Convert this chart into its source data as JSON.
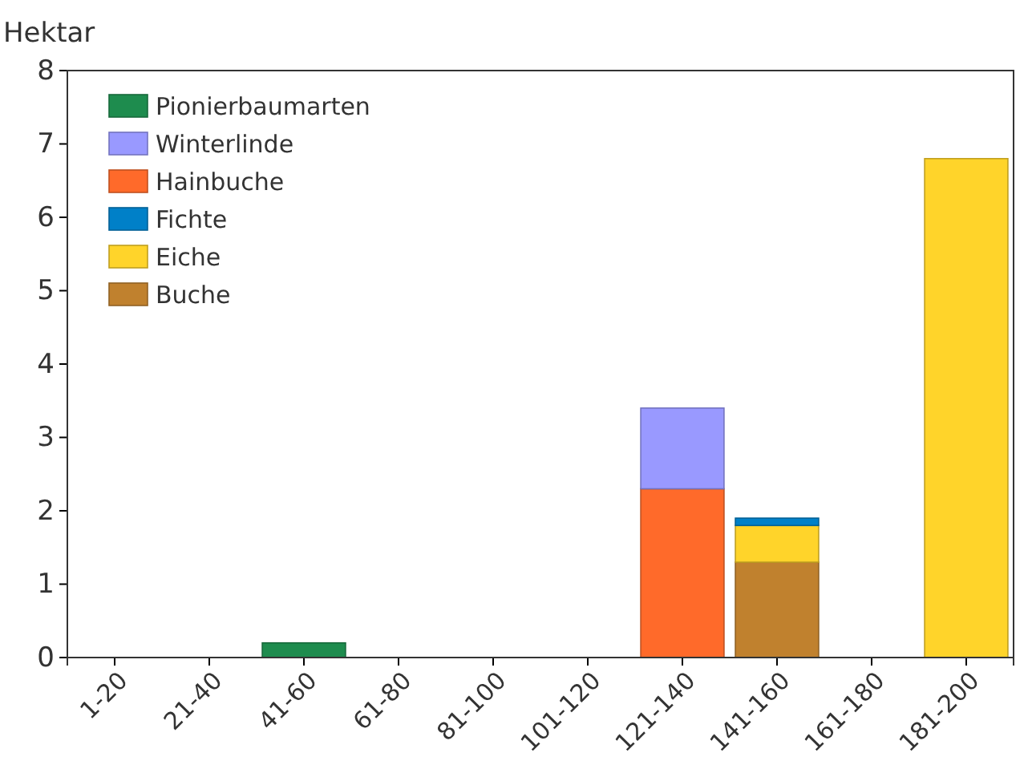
{
  "chart_data": {
    "type": "bar",
    "stacked": true,
    "ylabel": "Hektar",
    "categories": [
      "1-20",
      "21-40",
      "41-60",
      "61-80",
      "81-100",
      "101-120",
      "121-140",
      "141-160",
      "161-180",
      "181-200"
    ],
    "series": [
      {
        "name": "Buche",
        "color": "#c0812e",
        "values": [
          0,
          0,
          0,
          0,
          0,
          0,
          0,
          1.3,
          0,
          0
        ]
      },
      {
        "name": "Eiche",
        "color": "#ffd42a",
        "values": [
          0,
          0,
          0,
          0,
          0,
          0,
          0,
          0.5,
          0,
          6.8
        ]
      },
      {
        "name": "Fichte",
        "color": "#0080c8",
        "values": [
          0,
          0,
          0,
          0,
          0,
          0,
          0,
          0.1,
          0,
          0
        ]
      },
      {
        "name": "Hainbuche",
        "color": "#ff6a2a",
        "values": [
          0,
          0,
          0,
          0,
          0,
          0,
          2.3,
          0,
          0,
          0
        ]
      },
      {
        "name": "Winterlinde",
        "color": "#9999ff",
        "values": [
          0,
          0,
          0,
          0,
          0,
          0,
          1.1,
          0,
          0,
          0
        ]
      },
      {
        "name": "Pionierbaumarten",
        "color": "#1e8c4e",
        "values": [
          0,
          0,
          0.2,
          0,
          0,
          0,
          0,
          0,
          0,
          0
        ]
      }
    ],
    "ylim": [
      0,
      8
    ],
    "yticks": [
      0,
      1,
      2,
      3,
      4,
      5,
      6,
      7,
      8
    ],
    "grid": false,
    "legend": "top left"
  }
}
